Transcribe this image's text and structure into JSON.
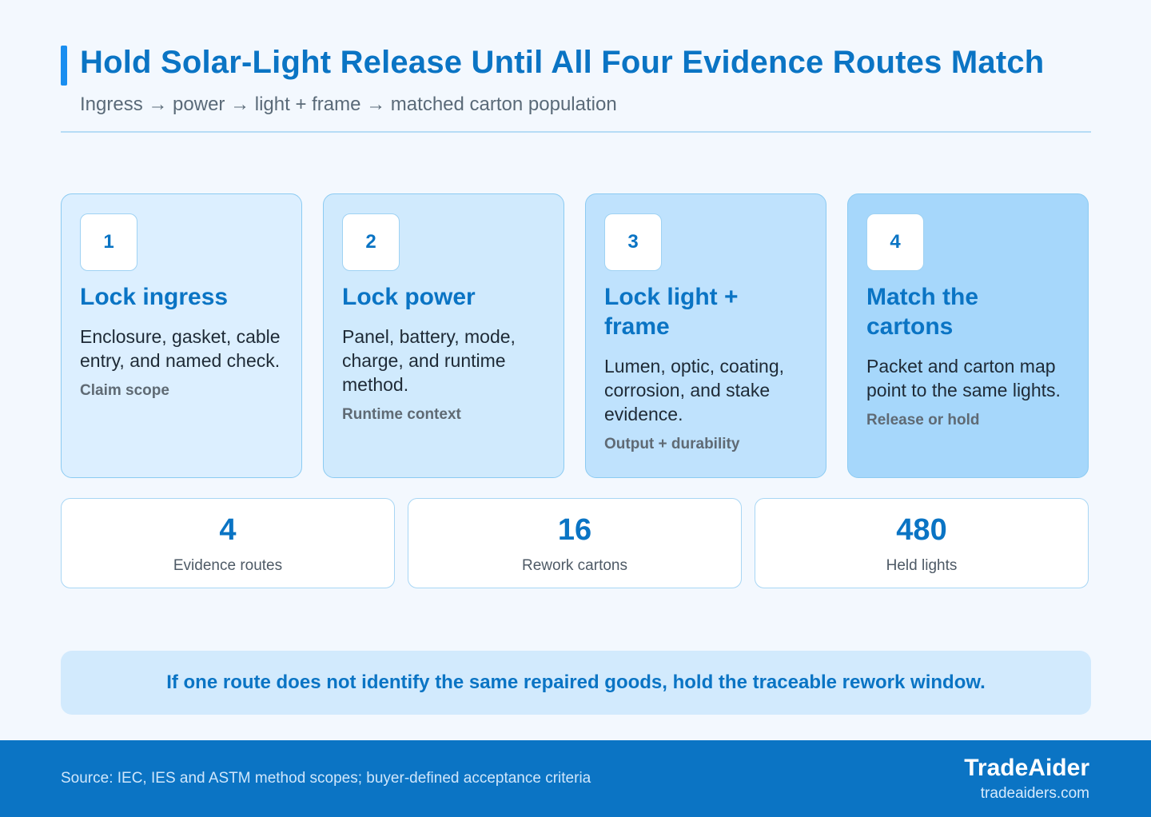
{
  "header": {
    "title": "Hold Solar-Light Release Until All Four Evidence Routes Match",
    "subtitle": "Ingress → power → light + frame → matched carton population"
  },
  "steps": [
    {
      "number": "1",
      "title": "Lock ingress",
      "description": "Enclosure, gasket, cable entry, and named check.",
      "tag": "Claim scope"
    },
    {
      "number": "2",
      "title": "Lock power",
      "description": "Panel, battery, mode, charge, and runtime method.",
      "tag": "Runtime context"
    },
    {
      "number": "3",
      "title": "Lock light + frame",
      "description": "Lumen, optic, coating, corrosion, and stake evidence.",
      "tag": "Output + durability"
    },
    {
      "number": "4",
      "title": "Match the cartons",
      "description": "Packet and carton map point to the same lights.",
      "tag": "Release or hold"
    }
  ],
  "stats": [
    {
      "value": "4",
      "label": "Evidence routes"
    },
    {
      "value": "16",
      "label": "Rework cartons"
    },
    {
      "value": "480",
      "label": "Held lights"
    }
  ],
  "note": "If one route does not identify the same repaired goods, hold the traceable rework window.",
  "footer": {
    "source": "Source: IEC, IES and ASTM method scopes; buyer-defined acceptance criteria",
    "brand": "TradeAider",
    "url": "tradeaiders.com"
  }
}
